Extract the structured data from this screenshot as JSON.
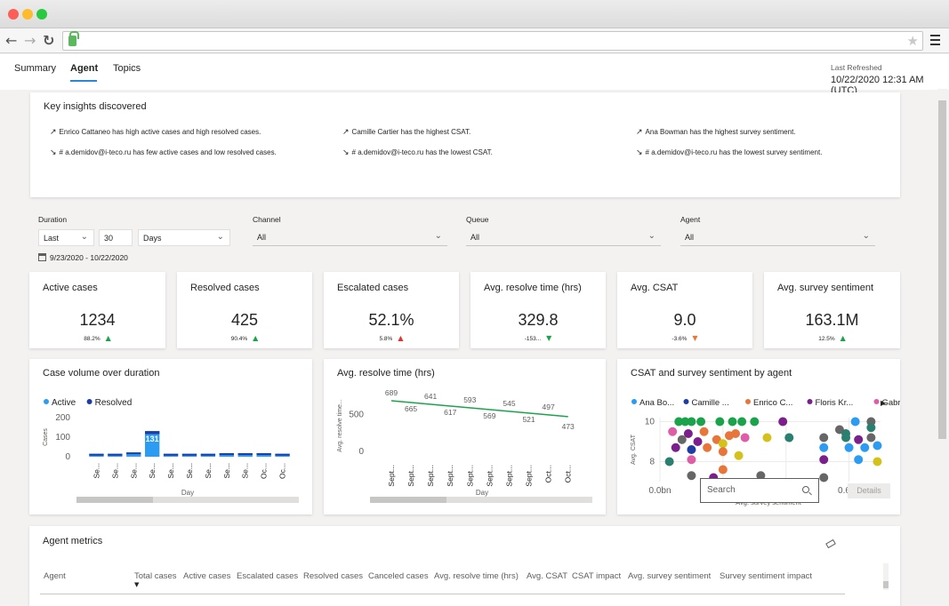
{
  "browser": {
    "url": ""
  },
  "tabs": [
    {
      "label": "Summary"
    },
    {
      "label": "Agent"
    },
    {
      "label": "Topics"
    }
  ],
  "refresh": {
    "label": "Last Refreshed",
    "value": "10/22/2020 12:31 AM (UTC)"
  },
  "insights": {
    "title": "Key insights discovered",
    "items": [
      {
        "direction": "up",
        "text": "Enrico Cattaneo has high active cases and high resolved cases."
      },
      {
        "direction": "up",
        "text": "Camille Cartier has the highest CSAT."
      },
      {
        "direction": "up",
        "text": "Ana Bowman has the highest survey sentiment."
      },
      {
        "direction": "down",
        "text": "# a.demidov@i-teco.ru has few active cases and low resolved cases."
      },
      {
        "direction": "down",
        "text": "# a.demidov@i-teco.ru has the lowest CSAT."
      },
      {
        "direction": "down",
        "text": "# a.demidov@i-teco.ru has the lowest survey sentiment."
      }
    ]
  },
  "filters": {
    "duration_label": "Duration",
    "duration_mode": "Last",
    "duration_value": "30",
    "duration_unit": "Days",
    "date_range": "9/23/2020 - 10/22/2020",
    "channel_label": "Channel",
    "channel_value": "All",
    "queue_label": "Queue",
    "queue_value": "All",
    "agent_label": "Agent",
    "agent_value": "All"
  },
  "kpis": [
    {
      "title": "Active cases",
      "value": "1234",
      "delta": "88.2%",
      "trend": "up"
    },
    {
      "title": "Resolved cases",
      "value": "425",
      "delta": "90.4%",
      "trend": "up"
    },
    {
      "title": "Escalated cases",
      "value": "52.1%",
      "delta": "5.8%",
      "trend": "up-red"
    },
    {
      "title": "Avg. resolve time (hrs)",
      "value": "329.8",
      "delta": "-153...",
      "trend": "down-green"
    },
    {
      "title": "Avg. CSAT",
      "value": "9.0",
      "delta": "-3.6%",
      "trend": "down-orange"
    },
    {
      "title": "Avg. survey sentiment",
      "value": "163.1M",
      "delta": "12.5%",
      "trend": "up"
    }
  ],
  "colors": {
    "accent": "#2b88d8",
    "active": "#2b9cf2",
    "resolved": "#1f3ba6",
    "trend_line": "#1aa34a",
    "up": "#1aa34a",
    "down_red": "#e3342f"
  },
  "chart_data": [
    {
      "type": "bar",
      "title": "Case volume over duration",
      "xlabel": "Day",
      "ylabel": "Cases",
      "yticks": [
        "200",
        "100",
        "0"
      ],
      "ylim": [
        0,
        200
      ],
      "legend": "top-left",
      "categories": [
        "Se...",
        "Se...",
        "Se...",
        "Se...",
        "Se...",
        "Se...",
        "Se...",
        "Se...",
        "Se...",
        "Oc...",
        "Oc..."
      ],
      "series": [
        {
          "name": "Active",
          "values": [
            15,
            15,
            22,
            131,
            15,
            15,
            15,
            18,
            18,
            18,
            15
          ]
        },
        {
          "name": "Resolved",
          "values": [
            8,
            8,
            8,
            30,
            6,
            8,
            8,
            8,
            8,
            8,
            8
          ]
        }
      ],
      "data_labels": [
        {
          "index": 3,
          "text": "131"
        }
      ]
    },
    {
      "type": "line",
      "title": "Avg. resolve time (hrs)",
      "xlabel": "Day",
      "ylabel": "Avg. resolve time...",
      "yticks": [
        "500",
        "0"
      ],
      "ylim": [
        0,
        750
      ],
      "categories": [
        "Sept...",
        "Sept...",
        "Sept...",
        "Sept...",
        "Sept...",
        "Sept...",
        "Sept...",
        "Sept...",
        "Oct...",
        "Oct..."
      ],
      "labels": [
        "689",
        "665",
        "641",
        "617",
        "593",
        "569",
        "545",
        "521",
        "497",
        "473"
      ],
      "values": [
        689,
        665,
        641,
        617,
        593,
        569,
        545,
        521,
        497,
        473
      ]
    },
    {
      "type": "scatter",
      "title": "CSAT and survey sentiment by agent",
      "xlabel": "Avg. survey sentiment",
      "ylabel": "Avg. CSAT",
      "xticks": [
        "0.0bn",
        "0.2bn",
        "0.4bn",
        "0.6bn"
      ],
      "yticks": [
        "10",
        "8"
      ],
      "xlim": [
        0,
        0.7
      ],
      "ylim": [
        7,
        10.2
      ],
      "legend_entries": [
        {
          "name": "Ana Bo...",
          "color": "#2b9cf2"
        },
        {
          "name": "Camille ...",
          "color": "#1f3ba6"
        },
        {
          "name": "Enrico C...",
          "color": "#e8763a"
        },
        {
          "name": "Floris Kr...",
          "color": "#7a1f8c"
        },
        {
          "name": "Gabriel ...",
          "color": "#e05ca6"
        }
      ],
      "points": [
        {
          "x": 0.06,
          "y": 10,
          "c": "#1aa34a"
        },
        {
          "x": 0.08,
          "y": 10,
          "c": "#1aa34a"
        },
        {
          "x": 0.1,
          "y": 10,
          "c": "#1aa34a"
        },
        {
          "x": 0.13,
          "y": 10,
          "c": "#1aa34a"
        },
        {
          "x": 0.19,
          "y": 10,
          "c": "#1aa34a"
        },
        {
          "x": 0.23,
          "y": 10,
          "c": "#1aa34a"
        },
        {
          "x": 0.26,
          "y": 10,
          "c": "#1aa34a"
        },
        {
          "x": 0.3,
          "y": 10,
          "c": "#1aa34a"
        },
        {
          "x": 0.39,
          "y": 10,
          "c": "#7a1f8c"
        },
        {
          "x": 0.62,
          "y": 10,
          "c": "#2b9cf2"
        },
        {
          "x": 0.67,
          "y": 10,
          "c": "#666666"
        },
        {
          "x": 0.04,
          "y": 9.5,
          "c": "#e05ca6"
        },
        {
          "x": 0.09,
          "y": 9.4,
          "c": "#7a1f8c"
        },
        {
          "x": 0.14,
          "y": 9.5,
          "c": "#e8763a"
        },
        {
          "x": 0.22,
          "y": 9.3,
          "c": "#e8763a"
        },
        {
          "x": 0.24,
          "y": 9.4,
          "c": "#e8763a"
        },
        {
          "x": 0.27,
          "y": 9.2,
          "c": "#e05ca6"
        },
        {
          "x": 0.34,
          "y": 9.2,
          "c": "#d4c21a"
        },
        {
          "x": 0.41,
          "y": 9.2,
          "c": "#2a7f6f"
        },
        {
          "x": 0.57,
          "y": 9.6,
          "c": "#666666"
        },
        {
          "x": 0.67,
          "y": 9.7,
          "c": "#2a7f6f"
        },
        {
          "x": 0.07,
          "y": 9.1,
          "c": "#666666"
        },
        {
          "x": 0.12,
          "y": 9.0,
          "c": "#7a1f8c"
        },
        {
          "x": 0.18,
          "y": 9.1,
          "c": "#e8763a"
        },
        {
          "x": 0.2,
          "y": 8.9,
          "c": "#d4c21a"
        },
        {
          "x": 0.52,
          "y": 9.2,
          "c": "#666666"
        },
        {
          "x": 0.59,
          "y": 9.2,
          "c": "#2a7f6f"
        },
        {
          "x": 0.63,
          "y": 9.1,
          "c": "#7a1f8c"
        },
        {
          "x": 0.67,
          "y": 9.2,
          "c": "#666666"
        },
        {
          "x": 0.59,
          "y": 9.4,
          "c": "#2a7f6f"
        },
        {
          "x": 0.05,
          "y": 8.7,
          "c": "#7a1f8c"
        },
        {
          "x": 0.1,
          "y": 8.6,
          "c": "#1f3ba6"
        },
        {
          "x": 0.15,
          "y": 8.7,
          "c": "#e8763a"
        },
        {
          "x": 0.2,
          "y": 8.5,
          "c": "#e8763a"
        },
        {
          "x": 0.25,
          "y": 8.3,
          "c": "#d4c21a"
        },
        {
          "x": 0.6,
          "y": 8.7,
          "c": "#2b9cf2"
        },
        {
          "x": 0.65,
          "y": 8.7,
          "c": "#2b9cf2"
        },
        {
          "x": 0.69,
          "y": 8.8,
          "c": "#2b9cf2"
        },
        {
          "x": 0.52,
          "y": 8.7,
          "c": "#2b9cf2"
        },
        {
          "x": 0.03,
          "y": 8.0,
          "c": "#2a7f6f"
        },
        {
          "x": 0.1,
          "y": 8.1,
          "c": "#e05ca6"
        },
        {
          "x": 0.2,
          "y": 7.6,
          "c": "#e8763a"
        },
        {
          "x": 0.52,
          "y": 8.1,
          "c": "#7a1f8c"
        },
        {
          "x": 0.63,
          "y": 8.1,
          "c": "#2b9cf2"
        },
        {
          "x": 0.69,
          "y": 8.0,
          "c": "#d4c21a"
        },
        {
          "x": 0.1,
          "y": 7.3,
          "c": "#666666"
        },
        {
          "x": 0.17,
          "y": 7.2,
          "c": "#7a1f8c"
        },
        {
          "x": 0.32,
          "y": 7.3,
          "c": "#666666"
        },
        {
          "x": 0.52,
          "y": 7.2,
          "c": "#666666"
        }
      ]
    }
  ],
  "agent_metrics": {
    "title": "Agent metrics",
    "search_placeholder": "Search",
    "details_label": "Details",
    "columns": [
      "Agent",
      "Total cases",
      "Active cases",
      "Escalated cases",
      "Resolved cases",
      "Canceled cases",
      "Avg. resolve time (hrs)",
      "Avg. CSAT",
      "CSAT impact",
      "Avg. survey sentiment",
      "Survey sentiment impact"
    ]
  }
}
